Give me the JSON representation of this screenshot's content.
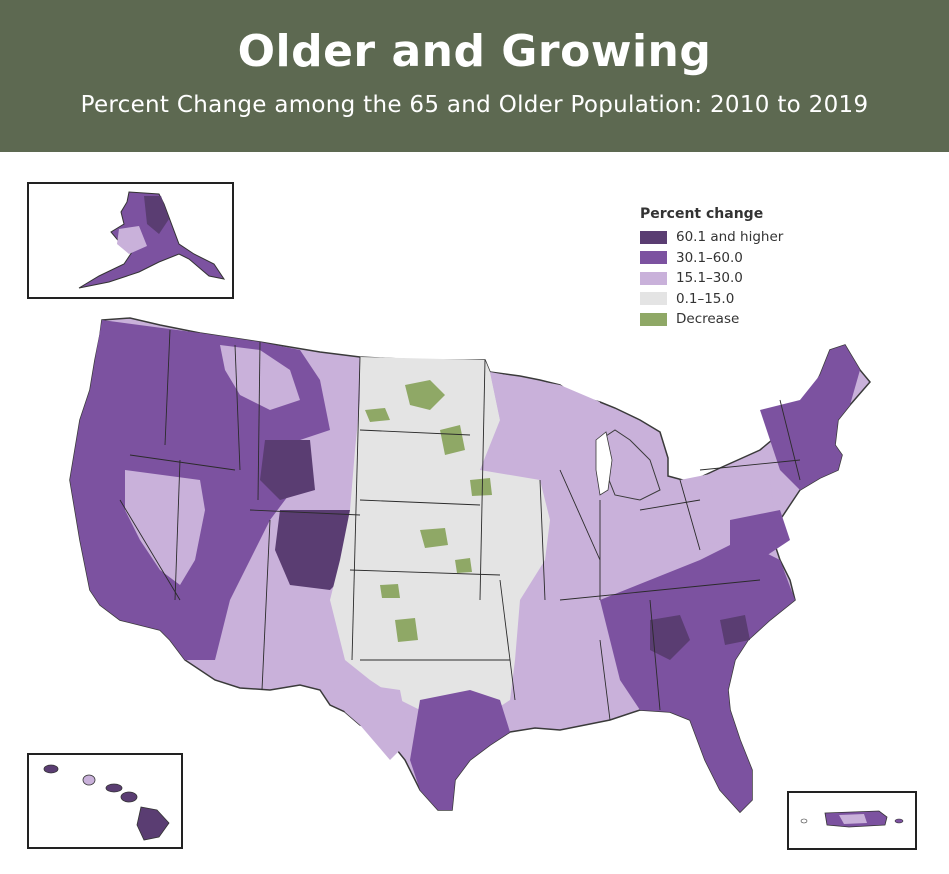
{
  "header": {
    "title": "Older and Growing",
    "subtitle": "Percent Change among the 65 and Older Population: 2010 to 2019"
  },
  "legend": {
    "title": "Percent change",
    "items": [
      {
        "label": "60.1 and higher",
        "color": "#5a3d72"
      },
      {
        "label": "30.1–60.0",
        "color": "#7c52a0"
      },
      {
        "label": "15.1–30.0",
        "color": "#c9b1da"
      },
      {
        "label": "0.1–15.0",
        "color": "#e4e4e4"
      },
      {
        "label": "Decrease",
        "color": "#8fa866"
      }
    ]
  },
  "colors": {
    "banner": "#5d6951",
    "border": "#2b2b2b"
  },
  "insets": [
    "alaska-inset",
    "hawaii-inset",
    "puerto-rico-inset"
  ]
}
